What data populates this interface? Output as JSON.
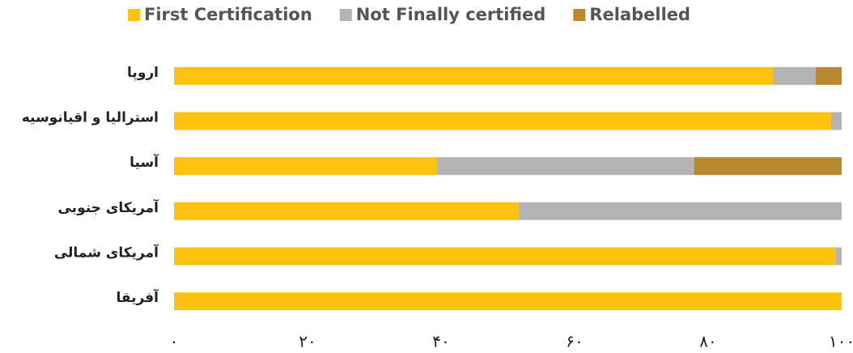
{
  "chart_data": {
    "type": "stacked-bar-horizontal",
    "categories": [
      "اروپا",
      "استرالیا و اقیانوسیه",
      "آسیا",
      "آمریکای جنوبی",
      "آمریکای شمالی",
      "آفریقا"
    ],
    "series": [
      {
        "name": "First Certification",
        "color": "#FFC20E",
        "values": [
          89.7,
          98.4,
          39.4,
          51.6,
          99.0,
          100
        ]
      },
      {
        "name": "Not Finally certified",
        "color": "#B4B4B4",
        "values": [
          6.4,
          1.6,
          38.5,
          48.4,
          1.0,
          0
        ]
      },
      {
        "name": "Relabelled",
        "color": "#B8892F",
        "values": [
          3.9,
          0,
          22.1,
          0,
          0,
          0
        ]
      }
    ],
    "xlim": [
      0,
      100
    ],
    "xticks": [
      {
        "value": 0,
        "label": "۰"
      },
      {
        "value": 20,
        "label": "۲۰"
      },
      {
        "value": 40,
        "label": "۴۰"
      },
      {
        "value": 60,
        "label": "۶۰"
      },
      {
        "value": 80,
        "label": "۸۰"
      },
      {
        "value": 100,
        "label": "۱۰۰"
      }
    ],
    "legend": "top"
  }
}
